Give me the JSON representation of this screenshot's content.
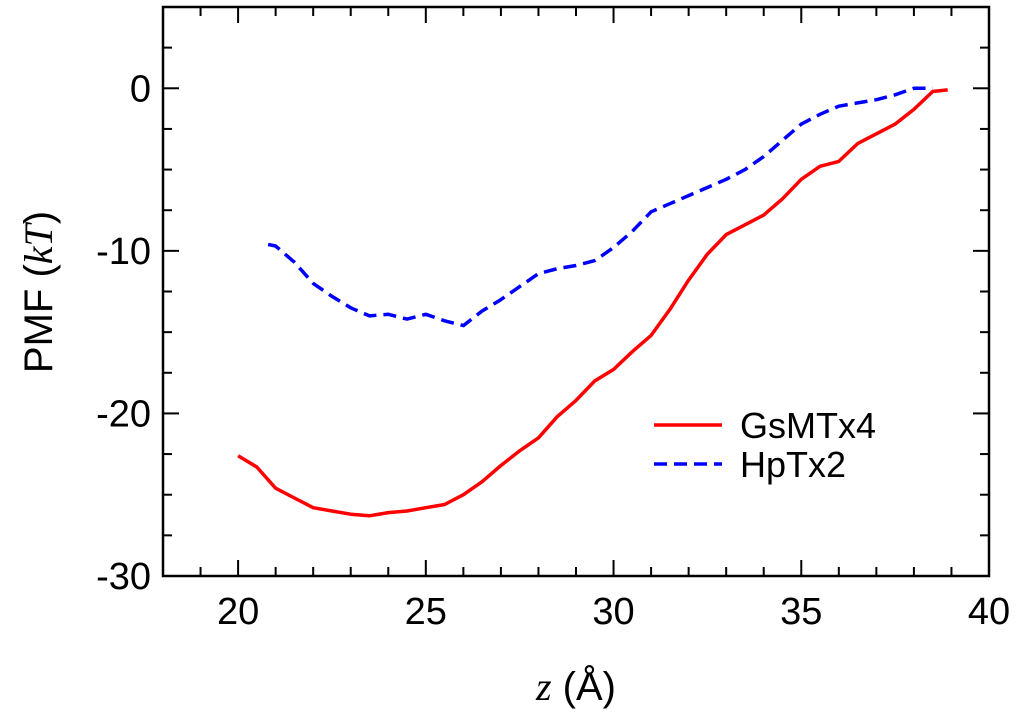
{
  "chart_data": {
    "type": "line",
    "xlabel": {
      "var": "z",
      "unit": " (Å)"
    },
    "ylabel": {
      "prefix": "PMF (",
      "var": "kT",
      "suffix": ")"
    },
    "xlim": [
      18,
      40
    ],
    "ylim": [
      -30,
      5
    ],
    "xticks": [
      20,
      25,
      30,
      35,
      40
    ],
    "yticks": [
      -30,
      -20,
      -10,
      0
    ],
    "legend_position": "lower-right",
    "grid": false,
    "series": [
      {
        "name": "GsMTx4",
        "color": "#ff0000",
        "dash": "solid",
        "x": [
          20.0,
          20.5,
          21.0,
          21.5,
          22.0,
          22.5,
          23.0,
          23.5,
          24.0,
          24.5,
          25.0,
          25.5,
          26.0,
          26.5,
          27.0,
          27.5,
          28.0,
          28.5,
          29.0,
          29.5,
          30.0,
          30.5,
          31.0,
          31.5,
          32.0,
          32.5,
          33.0,
          33.5,
          34.0,
          34.5,
          35.0,
          35.5,
          36.0,
          36.5,
          37.0,
          37.5,
          38.0,
          38.5,
          38.9
        ],
        "y": [
          -22.6,
          -23.3,
          -24.6,
          -25.2,
          -25.8,
          -26.0,
          -26.2,
          -26.3,
          -26.1,
          -26.0,
          -25.8,
          -25.6,
          -25.0,
          -24.2,
          -23.2,
          -22.3,
          -21.5,
          -20.2,
          -19.2,
          -18.0,
          -17.3,
          -16.2,
          -15.2,
          -13.6,
          -11.8,
          -10.2,
          -9.0,
          -8.4,
          -7.8,
          -6.8,
          -5.6,
          -4.8,
          -4.5,
          -3.4,
          -2.8,
          -2.2,
          -1.3,
          -0.2,
          -0.1
        ]
      },
      {
        "name": "HpTx2",
        "color": "#0000ff",
        "dash": "dashed",
        "x": [
          20.8,
          21.0,
          21.5,
          22.0,
          22.5,
          23.0,
          23.5,
          24.0,
          24.5,
          25.0,
          25.5,
          26.0,
          26.5,
          27.0,
          27.5,
          28.0,
          28.5,
          29.0,
          29.5,
          30.0,
          30.5,
          31.0,
          31.5,
          32.0,
          32.5,
          33.0,
          33.5,
          34.0,
          34.5,
          35.0,
          35.5,
          36.0,
          36.5,
          37.0,
          37.5,
          38.0,
          38.5
        ],
        "y": [
          -9.6,
          -9.7,
          -10.7,
          -12.0,
          -12.8,
          -13.5,
          -14.0,
          -13.9,
          -14.2,
          -13.9,
          -14.3,
          -14.6,
          -13.7,
          -13.0,
          -12.2,
          -11.4,
          -11.1,
          -10.9,
          -10.6,
          -9.8,
          -8.8,
          -7.6,
          -7.1,
          -6.6,
          -6.1,
          -5.6,
          -5.0,
          -4.2,
          -3.2,
          -2.2,
          -1.6,
          -1.1,
          -0.9,
          -0.7,
          -0.4,
          0.0,
          0.0
        ]
      }
    ]
  }
}
